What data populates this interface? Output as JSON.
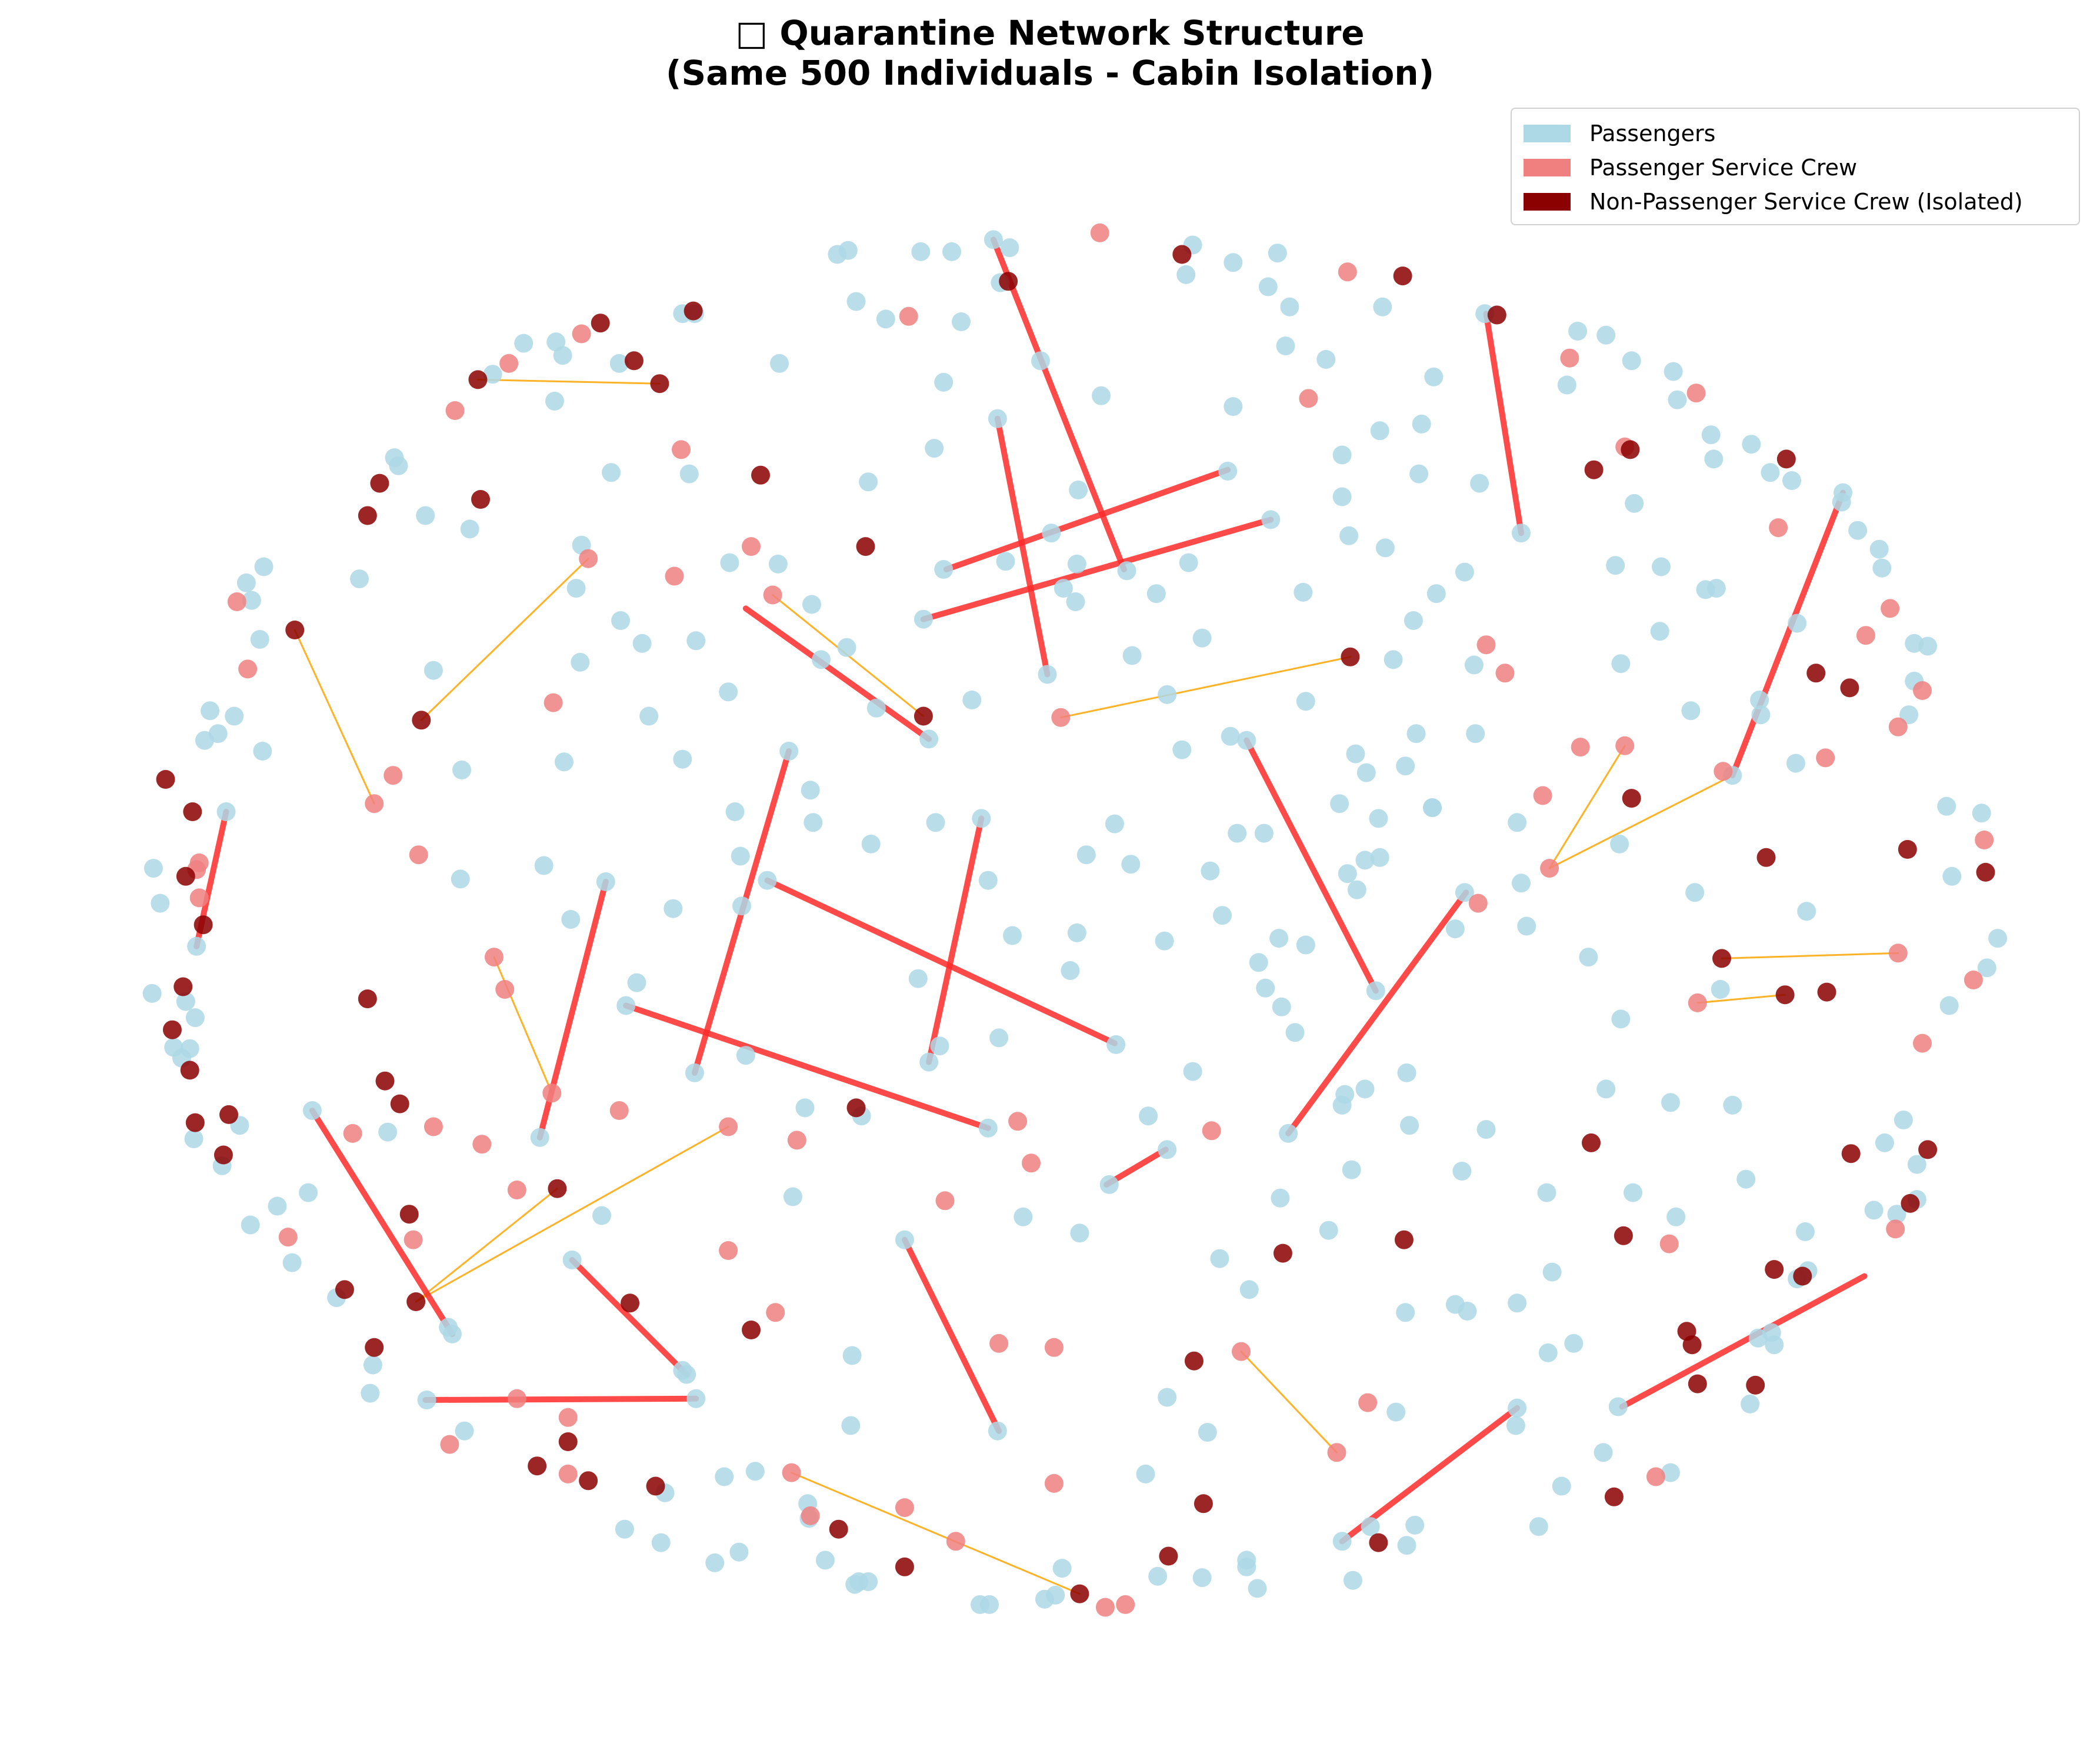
{
  "title": {
    "line1": "□ Quarantine Network Structure",
    "line2": "(Same 500 Individuals - Cabin Isolation)"
  },
  "colors": {
    "passenger": "#add8e6",
    "service_crew": "#f08080",
    "non_service_crew": "#8b0000",
    "isolation_edge": "#ff2a2a",
    "crew_edge": "#ffa500"
  },
  "legend": [
    {
      "label": "Passengers",
      "color": "#add8e6"
    },
    {
      "label": "Passenger Service Crew",
      "color": "#f08080"
    },
    {
      "label": "Non-Passenger Service Crew (Isolated)",
      "color": "#8b0000"
    }
  ]
}
